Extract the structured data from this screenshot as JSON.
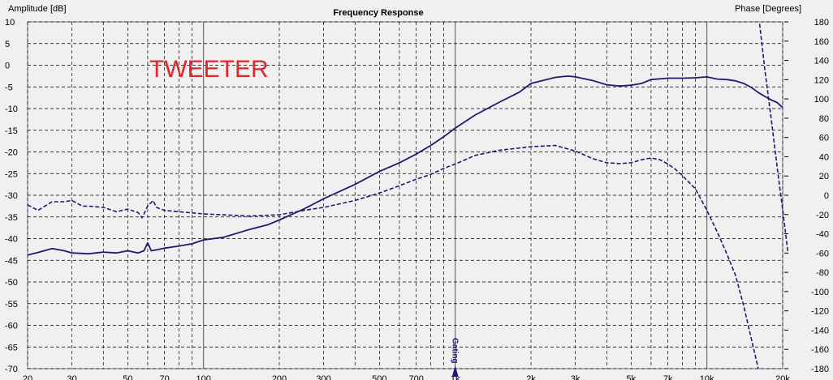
{
  "chart_data": {
    "type": "line",
    "title": "Frequency Response",
    "annotation": "TWEETER",
    "left_axis_label": "Amplitude [dB]",
    "right_axis_label": "Phase [Degrees]",
    "marker_label": "Gating",
    "marker_freq": 1000,
    "x_scale": "log",
    "xlim": [
      20,
      20000
    ],
    "ylim_left": [
      -70,
      10
    ],
    "ylim_right": [
      -180,
      180
    ],
    "grid": true,
    "line_color": "#1c1c6e",
    "x_ticks": [
      {
        "value": 20,
        "label": "20"
      },
      {
        "value": 30,
        "label": "30"
      },
      {
        "value": 50,
        "label": "50"
      },
      {
        "value": 70,
        "label": "70"
      },
      {
        "value": 100,
        "label": "100"
      },
      {
        "value": 200,
        "label": "200"
      },
      {
        "value": 300,
        "label": "300"
      },
      {
        "value": 500,
        "label": "500"
      },
      {
        "value": 700,
        "label": "700"
      },
      {
        "value": 1000,
        "label": "1k"
      },
      {
        "value": 2000,
        "label": "2k"
      },
      {
        "value": 3000,
        "label": "3k"
      },
      {
        "value": 5000,
        "label": "5k"
      },
      {
        "value": 7000,
        "label": "7k"
      },
      {
        "value": 10000,
        "label": "10k"
      },
      {
        "value": 20000,
        "label": "20k"
      }
    ],
    "left_ticks": [
      10,
      5,
      0,
      -5,
      -10,
      -15,
      -20,
      -25,
      -30,
      -35,
      -40,
      -45,
      -50,
      -55,
      -60,
      -65,
      -70
    ],
    "right_ticks": [
      180,
      160,
      140,
      120,
      100,
      80,
      60,
      40,
      20,
      0,
      -20,
      -40,
      -60,
      -80,
      -100,
      -120,
      -140,
      -160,
      -180
    ],
    "series": [
      {
        "style": "solid",
        "axis": "left",
        "x": [
          20,
          22,
          25,
          28,
          30,
          35,
          40,
          45,
          50,
          55,
          58,
          60,
          62,
          65,
          70,
          80,
          90,
          100,
          120,
          150,
          180,
          200,
          250,
          300,
          400,
          500,
          600,
          700,
          800,
          900,
          1000,
          1200,
          1500,
          1800,
          2000,
          2500,
          2800,
          3000,
          3500,
          4000,
          4500,
          5000,
          5500,
          6000,
          7000,
          8000,
          9000,
          10000,
          11000,
          12000,
          13000,
          14000,
          15000,
          16000,
          17000,
          18000,
          19000,
          19500,
          20000
        ],
        "values": [
          -43.8,
          -43.2,
          -42.3,
          -42.8,
          -43.3,
          -43.5,
          -43.1,
          -43.3,
          -42.8,
          -43.3,
          -42.8,
          -41,
          -42.8,
          -42.6,
          -42.2,
          -41.7,
          -41.2,
          -40.3,
          -39.7,
          -38,
          -36.8,
          -35.7,
          -33.2,
          -30.8,
          -27.5,
          -24.5,
          -22.5,
          -20.5,
          -18.5,
          -16.5,
          -14.5,
          -11.5,
          -8.5,
          -6.2,
          -4.2,
          -2.8,
          -2.5,
          -2.7,
          -3.5,
          -4.5,
          -4.8,
          -4.6,
          -4.2,
          -3.3,
          -3.0,
          -3.0,
          -2.9,
          -2.7,
          -3.2,
          -3.3,
          -3.6,
          -4.2,
          -5.1,
          -6.3,
          -7.2,
          -8.0,
          -8.6,
          -9.2,
          -9.8
        ]
      },
      {
        "style": "dashed",
        "axis": "left",
        "x": [
          20,
          22,
          25,
          28,
          30,
          33,
          35,
          40,
          45,
          50,
          55,
          57,
          60,
          63,
          65,
          70,
          80,
          100,
          120,
          150,
          200,
          250,
          300,
          400,
          500,
          600,
          700,
          800,
          900,
          1000,
          1200,
          1500,
          2000,
          2500,
          3000,
          3500,
          4000,
          4500,
          5000,
          5500,
          6000,
          6500,
          7000,
          7500,
          8000,
          9000,
          10000,
          11000,
          12000,
          13000,
          14000,
          15000,
          16000
        ],
        "values": [
          -32.2,
          -33.5,
          -31.5,
          -31.5,
          -31.2,
          -32.5,
          -32.5,
          -32.8,
          -33.8,
          -33.2,
          -34.0,
          -35.2,
          -32.5,
          -31.2,
          -32.8,
          -33.5,
          -33.8,
          -34.3,
          -34.5,
          -34.8,
          -34.5,
          -33.5,
          -32.8,
          -31.2,
          -29.5,
          -27.8,
          -26.3,
          -25.2,
          -23.8,
          -22.8,
          -20.8,
          -19.6,
          -18.8,
          -18.5,
          -19.8,
          -21.5,
          -22.5,
          -22.7,
          -22.5,
          -21.8,
          -21.4,
          -21.8,
          -22.8,
          -24.0,
          -25.5,
          -28.5,
          -33.5,
          -38.5,
          -43.5,
          -48.5,
          -55.5,
          -63.0,
          -70.0
        ]
      },
      {
        "style": "dashed",
        "axis": "right",
        "x": [
          16200,
          17000,
          18000,
          19000,
          20000,
          21000
        ],
        "values": [
          178,
          130,
          80,
          30,
          -15,
          -60
        ]
      }
    ]
  }
}
